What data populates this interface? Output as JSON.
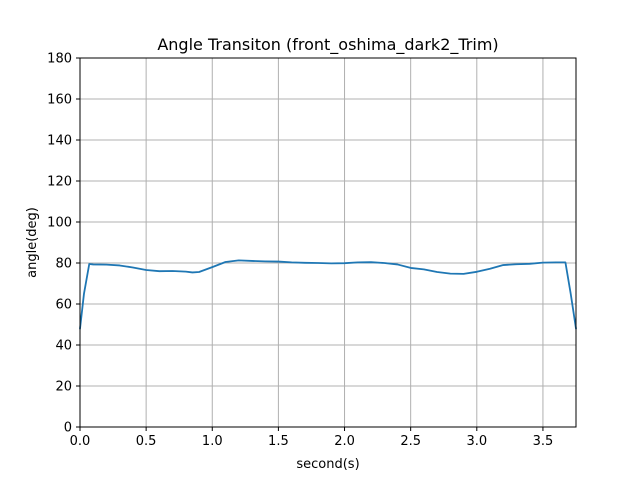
{
  "chart_data": {
    "type": "line",
    "title": "Angle Transiton (front_oshima_dark2_Trim)",
    "xlabel": "second(s)",
    "ylabel": "angle(deg)",
    "xlim": [
      0.0,
      3.75
    ],
    "ylim": [
      0,
      180
    ],
    "xticks": [
      0.0,
      0.5,
      1.0,
      1.5,
      2.0,
      2.5,
      3.0,
      3.5
    ],
    "xtick_labels": [
      "0.0",
      "0.5",
      "1.0",
      "1.5",
      "2.0",
      "2.5",
      "3.0",
      "3.5"
    ],
    "yticks": [
      0,
      20,
      40,
      60,
      80,
      100,
      120,
      140,
      160,
      180
    ],
    "ytick_labels": [
      "0",
      "20",
      "40",
      "60",
      "80",
      "100",
      "120",
      "140",
      "160",
      "180"
    ],
    "grid": true,
    "line_color": "#1f77b4",
    "series": [
      {
        "x": [
          0.0,
          0.03,
          0.07,
          0.1,
          0.2,
          0.3,
          0.4,
          0.5,
          0.6,
          0.7,
          0.8,
          0.85,
          0.9,
          1.0,
          1.1,
          1.2,
          1.3,
          1.4,
          1.5,
          1.6,
          1.7,
          1.8,
          1.9,
          2.0,
          2.1,
          2.2,
          2.3,
          2.4,
          2.5,
          2.6,
          2.7,
          2.8,
          2.9,
          3.0,
          3.1,
          3.2,
          3.3,
          3.4,
          3.5,
          3.6,
          3.67,
          3.71,
          3.75
        ],
        "values": [
          48,
          65,
          79.5,
          79.3,
          79.2,
          78.8,
          77.8,
          76.6,
          76.0,
          76.1,
          75.8,
          75.4,
          75.6,
          78.0,
          80.5,
          81.3,
          81.0,
          80.8,
          80.7,
          80.3,
          80.1,
          80.0,
          79.8,
          79.9,
          80.3,
          80.4,
          80.0,
          79.3,
          77.6,
          76.9,
          75.6,
          74.8,
          74.7,
          75.7,
          77.2,
          79.0,
          79.4,
          79.6,
          80.2,
          80.3,
          80.3,
          65,
          48
        ]
      }
    ]
  }
}
